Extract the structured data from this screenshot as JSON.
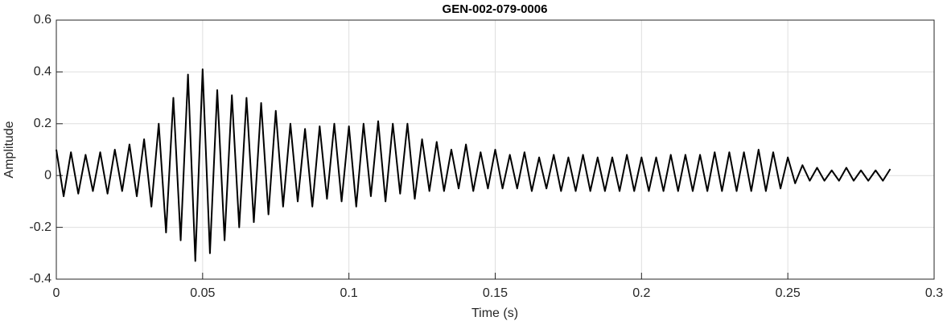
{
  "chart_data": {
    "type": "line",
    "title": "GEN-002-079-0006",
    "xlabel": "Time (s)",
    "ylabel": "Amplitude",
    "x": [
      0,
      0.0025,
      0.005,
      0.0075,
      0.01,
      0.0125,
      0.015,
      0.0175,
      0.02,
      0.0225,
      0.025,
      0.0275,
      0.03,
      0.0325,
      0.035,
      0.0375,
      0.04,
      0.0425,
      0.045,
      0.0475,
      0.05,
      0.0525,
      0.055,
      0.0575,
      0.06,
      0.0625,
      0.065,
      0.0675,
      0.07,
      0.0725,
      0.075,
      0.0775,
      0.08,
      0.0825,
      0.085,
      0.0875,
      0.09,
      0.0925,
      0.095,
      0.0975,
      0.1,
      0.1025,
      0.105,
      0.1075,
      0.11,
      0.1125,
      0.115,
      0.1175,
      0.12,
      0.1225,
      0.125,
      0.1275,
      0.13,
      0.1325,
      0.135,
      0.1375,
      0.14,
      0.1425,
      0.145,
      0.1475,
      0.15,
      0.1525,
      0.155,
      0.1575,
      0.16,
      0.1625,
      0.165,
      0.1675,
      0.17,
      0.1725,
      0.175,
      0.1775,
      0.18,
      0.1825,
      0.185,
      0.1875,
      0.19,
      0.1925,
      0.195,
      0.1975,
      0.2,
      0.2025,
      0.205,
      0.2075,
      0.21,
      0.2125,
      0.215,
      0.2175,
      0.22,
      0.2225,
      0.225,
      0.2275,
      0.23,
      0.2325,
      0.235,
      0.2375,
      0.24,
      0.2425,
      0.245,
      0.2475,
      0.25,
      0.2525,
      0.255,
      0.2575,
      0.26,
      0.2625,
      0.265,
      0.2675,
      0.27,
      0.2725,
      0.275,
      0.2775,
      0.28,
      0.2825,
      0.285
    ],
    "series": [
      {
        "color": "#000000",
        "values": [
          0.1,
          -0.08,
          0.09,
          -0.07,
          0.08,
          -0.06,
          0.09,
          -0.07,
          0.1,
          -0.06,
          0.12,
          -0.08,
          0.14,
          -0.12,
          0.2,
          -0.22,
          0.3,
          -0.25,
          0.39,
          -0.33,
          0.41,
          -0.3,
          0.33,
          -0.25,
          0.31,
          -0.2,
          0.3,
          -0.18,
          0.28,
          -0.15,
          0.25,
          -0.12,
          0.2,
          -0.1,
          0.18,
          -0.12,
          0.19,
          -0.09,
          0.2,
          -0.1,
          0.19,
          -0.12,
          0.2,
          -0.08,
          0.21,
          -0.1,
          0.2,
          -0.07,
          0.2,
          -0.09,
          0.14,
          -0.06,
          0.13,
          -0.06,
          0.1,
          -0.05,
          0.12,
          -0.06,
          0.09,
          -0.05,
          0.1,
          -0.05,
          0.08,
          -0.05,
          0.09,
          -0.06,
          0.07,
          -0.05,
          0.08,
          -0.06,
          0.07,
          -0.06,
          0.08,
          -0.06,
          0.07,
          -0.06,
          0.07,
          -0.06,
          0.08,
          -0.06,
          0.07,
          -0.06,
          0.07,
          -0.06,
          0.08,
          -0.06,
          0.08,
          -0.06,
          0.08,
          -0.06,
          0.09,
          -0.06,
          0.09,
          -0.06,
          0.09,
          -0.06,
          0.1,
          -0.06,
          0.09,
          -0.05,
          0.07,
          -0.03,
          0.04,
          -0.02,
          0.03,
          -0.02,
          0.02,
          -0.02,
          0.03,
          -0.02,
          0.02,
          -0.02,
          0.02,
          -0.02,
          0.025
        ]
      }
    ],
    "xlim": [
      0,
      0.3
    ],
    "xticks": [
      0,
      0.05,
      0.1,
      0.15,
      0.2,
      0.25,
      0.3
    ],
    "ylim": [
      -0.4,
      0.6
    ],
    "yticks": [
      -0.4,
      -0.2,
      0,
      0.2,
      0.4,
      0.6
    ],
    "grid": true
  }
}
